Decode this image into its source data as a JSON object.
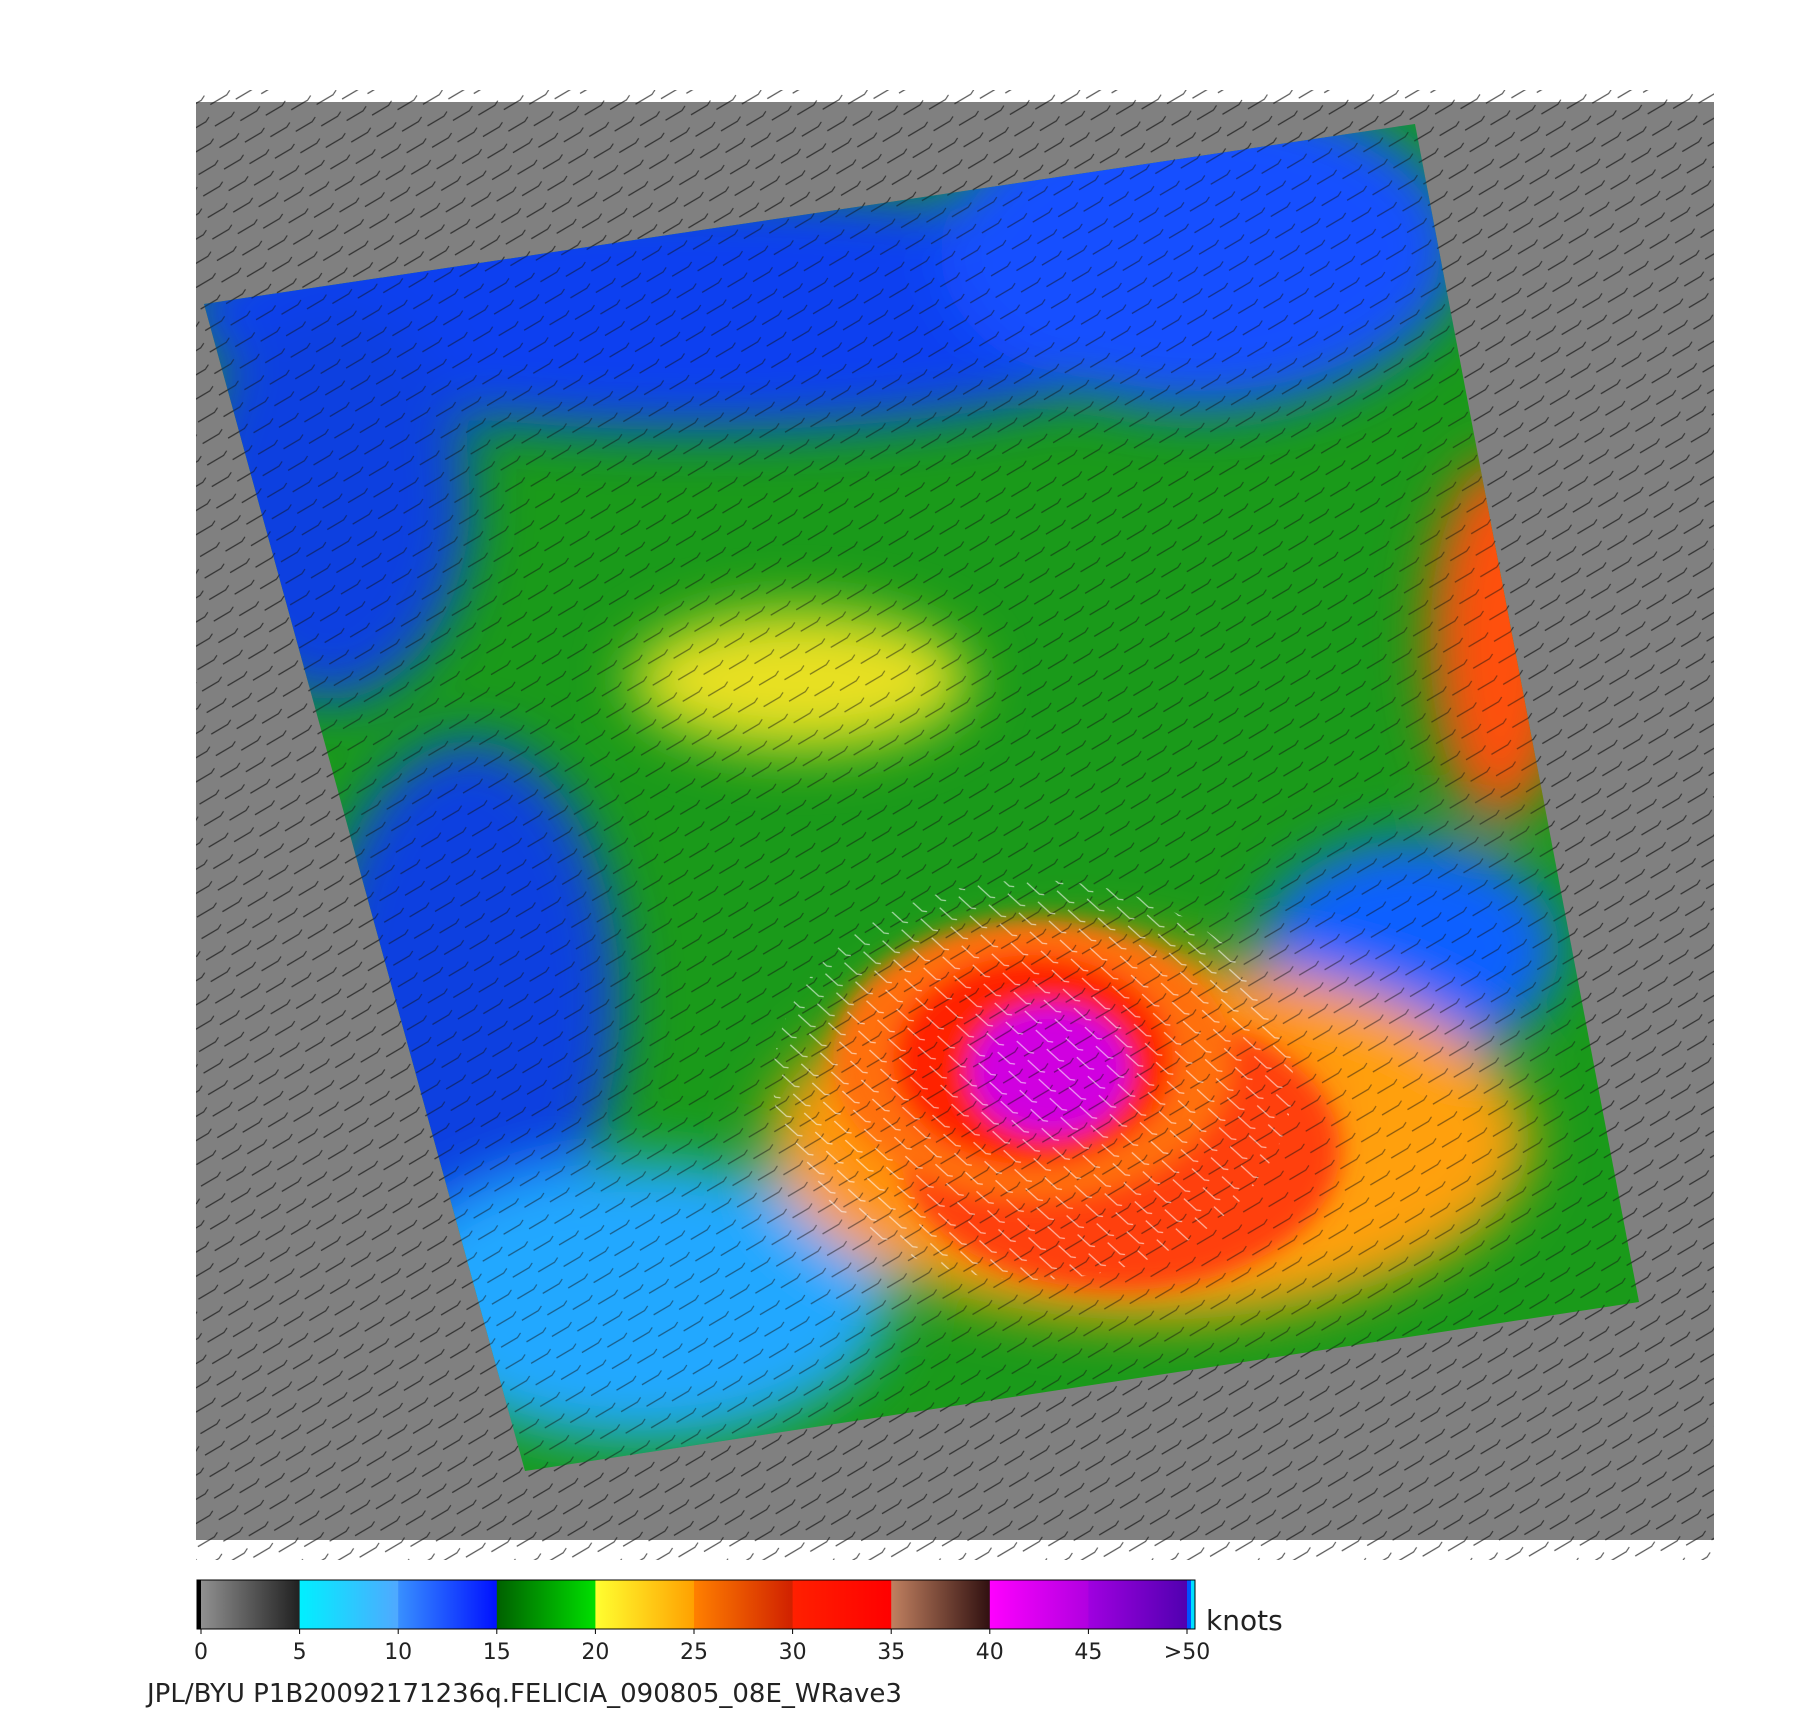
{
  "colorbar": {
    "ticks": [
      0,
      5,
      10,
      15,
      20,
      25,
      30,
      35,
      40,
      45,
      {
        "value": 50,
        "label": ">50"
      }
    ],
    "unit": "knots"
  },
  "caption": "JPL/BYU  P1B20092171236q.FELICIA_090805_08E_WRave3"
}
